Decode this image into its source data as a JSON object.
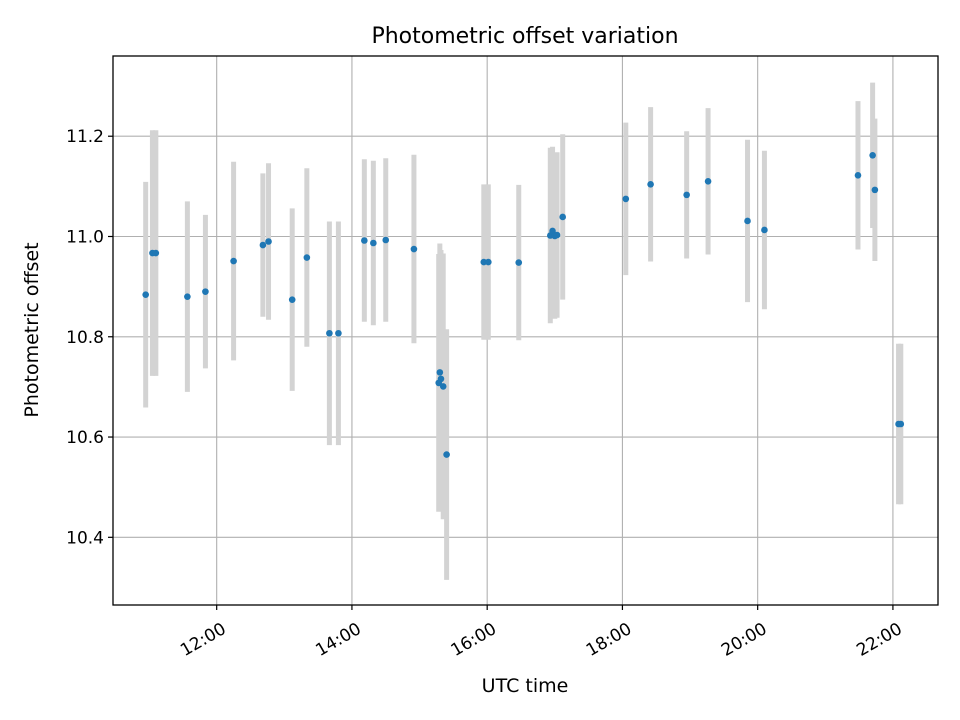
{
  "chart_data": {
    "type": "scatter",
    "title": "Photometric offset variation",
    "xlabel": "UTC time",
    "ylabel": "Photometric offset",
    "x_unit": "hours UTC",
    "xlim": [
      "10:28",
      "22:40"
    ],
    "ylim": [
      10.265,
      11.36
    ],
    "xticks": [
      "12:00",
      "14:00",
      "16:00",
      "18:00",
      "20:00",
      "22:00"
    ],
    "yticks": [
      10.4,
      10.6,
      10.8,
      11.0,
      11.2
    ],
    "ytick_labels": [
      "10.4",
      "10.6",
      "10.8",
      "11.0",
      "11.2"
    ],
    "grid": true,
    "marker_color": "#1f77b4",
    "errorbar_color": "#d3d3d3",
    "points": [
      {
        "time": "10:57",
        "y": 10.884,
        "err": 0.225
      },
      {
        "time": "11:03",
        "y": 10.967,
        "err": 0.245
      },
      {
        "time": "11:06",
        "y": 10.967,
        "err": 0.245
      },
      {
        "time": "11:34",
        "y": 10.88,
        "err": 0.19
      },
      {
        "time": "11:50",
        "y": 10.89,
        "err": 0.153
      },
      {
        "time": "12:15",
        "y": 10.951,
        "err": 0.198
      },
      {
        "time": "12:41",
        "y": 10.983,
        "err": 0.143
      },
      {
        "time": "12:46",
        "y": 10.99,
        "err": 0.156
      },
      {
        "time": "13:07",
        "y": 10.874,
        "err": 0.182
      },
      {
        "time": "13:20",
        "y": 10.958,
        "err": 0.178
      },
      {
        "time": "13:40",
        "y": 10.807,
        "err": 0.223
      },
      {
        "time": "13:48",
        "y": 10.807,
        "err": 0.223
      },
      {
        "time": "14:11",
        "y": 10.992,
        "err": 0.162
      },
      {
        "time": "14:19",
        "y": 10.987,
        "err": 0.164
      },
      {
        "time": "14:30",
        "y": 10.993,
        "err": 0.163
      },
      {
        "time": "14:55",
        "y": 10.975,
        "err": 0.188
      },
      {
        "time": "15:17",
        "y": 10.708,
        "err": 0.257
      },
      {
        "time": "15:18",
        "y": 10.729,
        "err": 0.257
      },
      {
        "time": "15:19",
        "y": 10.716,
        "err": 0.257
      },
      {
        "time": "15:21",
        "y": 10.701,
        "err": 0.265
      },
      {
        "time": "15:24",
        "y": 10.565,
        "err": 0.25
      },
      {
        "time": "15:57",
        "y": 10.949,
        "err": 0.155
      },
      {
        "time": "16:01",
        "y": 10.949,
        "err": 0.155
      },
      {
        "time": "16:28",
        "y": 10.948,
        "err": 0.155
      },
      {
        "time": "16:56",
        "y": 11.002,
        "err": 0.175
      },
      {
        "time": "16:58",
        "y": 11.011,
        "err": 0.168
      },
      {
        "time": "17:00",
        "y": 11.001,
        "err": 0.165
      },
      {
        "time": "17:02",
        "y": 11.003,
        "err": 0.165
      },
      {
        "time": "17:07",
        "y": 11.039,
        "err": 0.165
      },
      {
        "time": "18:03",
        "y": 11.075,
        "err": 0.152
      },
      {
        "time": "18:25",
        "y": 11.104,
        "err": 0.154
      },
      {
        "time": "18:57",
        "y": 11.083,
        "err": 0.127
      },
      {
        "time": "19:16",
        "y": 11.11,
        "err": 0.146
      },
      {
        "time": "19:51",
        "y": 11.031,
        "err": 0.162
      },
      {
        "time": "20:06",
        "y": 11.013,
        "err": 0.158
      },
      {
        "time": "21:29",
        "y": 11.122,
        "err": 0.148
      },
      {
        "time": "21:42",
        "y": 11.162,
        "err": 0.145
      },
      {
        "time": "21:44",
        "y": 11.093,
        "err": 0.142
      },
      {
        "time": "22:05",
        "y": 10.626,
        "err": 0.16
      },
      {
        "time": "22:07",
        "y": 10.626,
        "err": 0.16
      }
    ]
  }
}
